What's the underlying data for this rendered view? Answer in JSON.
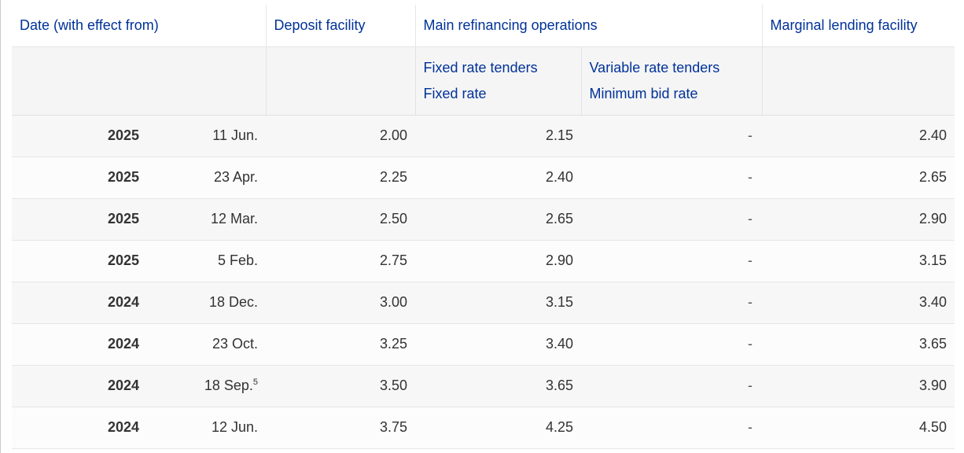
{
  "table": {
    "headers": {
      "date": "Date (with effect from)",
      "deposit": "Deposit facility",
      "mro": "Main refinancing operations",
      "mlf": "Marginal lending facility",
      "fixed_tenders": "Fixed rate tenders",
      "fixed_rate": "Fixed rate",
      "variable_tenders": "Variable rate tenders",
      "min_bid": "Minimum bid rate"
    },
    "rows": [
      {
        "year": "2025",
        "date": "11 Jun.",
        "footnote": "",
        "deposit": "2.00",
        "fixed": "2.15",
        "min_bid": "-",
        "mlf": "2.40"
      },
      {
        "year": "2025",
        "date": "23 Apr.",
        "footnote": "",
        "deposit": "2.25",
        "fixed": "2.40",
        "min_bid": "-",
        "mlf": "2.65"
      },
      {
        "year": "2025",
        "date": "12 Mar.",
        "footnote": "",
        "deposit": "2.50",
        "fixed": "2.65",
        "min_bid": "-",
        "mlf": "2.90"
      },
      {
        "year": "2025",
        "date": "5 Feb.",
        "footnote": "",
        "deposit": "2.75",
        "fixed": "2.90",
        "min_bid": "-",
        "mlf": "3.15"
      },
      {
        "year": "2024",
        "date": "18 Dec.",
        "footnote": "",
        "deposit": "3.00",
        "fixed": "3.15",
        "min_bid": "-",
        "mlf": "3.40"
      },
      {
        "year": "2024",
        "date": "23 Oct.",
        "footnote": "",
        "deposit": "3.25",
        "fixed": "3.40",
        "min_bid": "-",
        "mlf": "3.65"
      },
      {
        "year": "2024",
        "date": "18 Sep.",
        "footnote": "5",
        "deposit": "3.50",
        "fixed": "3.65",
        "min_bid": "-",
        "mlf": "3.90"
      },
      {
        "year": "2024",
        "date": "12 Jun.",
        "footnote": "",
        "deposit": "3.75",
        "fixed": "4.25",
        "min_bid": "-",
        "mlf": "4.50"
      }
    ]
  },
  "colors": {
    "header_text": "#003299",
    "body_text": "#333333",
    "row_alt": "#f7f7f7",
    "border": "#e6e6e6"
  }
}
